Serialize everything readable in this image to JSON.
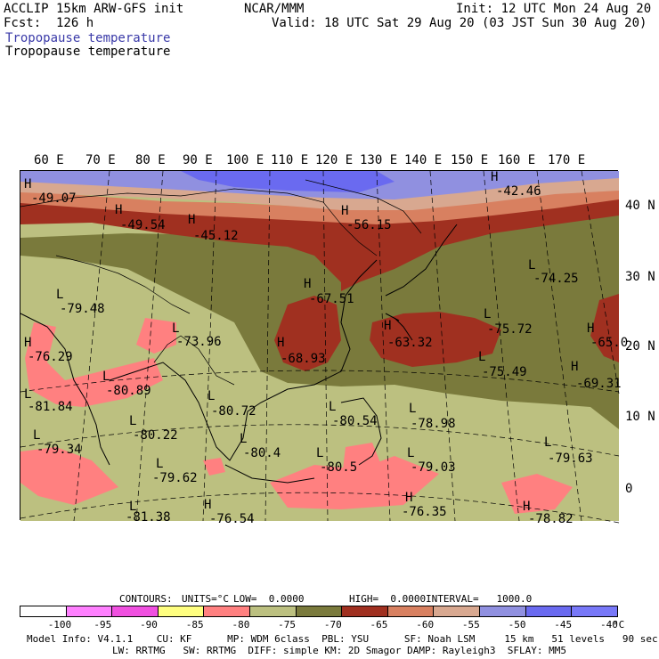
{
  "header": {
    "title": "ACCLIP 15km ARW-GFS init",
    "org": "NCAR/MMM",
    "init": "Init: 12 UTC Mon 24 Aug 20",
    "fcst": "Fcst:  126 h",
    "valid": "Valid: 18 UTC Sat 29 Aug 20 (03 JST Sun 30 Aug 20)",
    "field_colored": "Tropopause temperature",
    "field_contour": "Tropopause temperature"
  },
  "lon_labels": [
    "60 E",
    "70 E",
    "80 E",
    "90 E",
    "100 E",
    "110 E",
    "120 E",
    "130 E",
    "140 E",
    "150 E",
    "160 E",
    "170 E"
  ],
  "lat_labels": [
    "40 N",
    "30 N",
    "20 N",
    "10 N",
    "0"
  ],
  "map_labels": [
    {
      "type": "H",
      "value": "-49.07"
    },
    {
      "type": "H",
      "value": "-49.54"
    },
    {
      "type": "H",
      "value": "-45.12"
    },
    {
      "type": "H",
      "value": "-56.15"
    },
    {
      "type": "H",
      "value": "-42.46"
    },
    {
      "type": "L",
      "value": "-74.25"
    },
    {
      "type": "H",
      "value": "-67.51"
    },
    {
      "type": "L",
      "value": "-79.48"
    },
    {
      "type": "H",
      "value": "-76.29"
    },
    {
      "type": "L",
      "value": "-73.96"
    },
    {
      "type": "H",
      "value": "-68.93"
    },
    {
      "type": "H",
      "value": "-63.32"
    },
    {
      "type": "L",
      "value": "-75.72"
    },
    {
      "type": "H",
      "value": "-65.0"
    },
    {
      "type": "L",
      "value": "-75.49"
    },
    {
      "type": "H",
      "value": "-69.31"
    },
    {
      "type": "L",
      "value": "-80.89"
    },
    {
      "type": "L",
      "value": "-81.84"
    },
    {
      "type": "L",
      "value": "-80.72"
    },
    {
      "type": "L",
      "value": "-80.54"
    },
    {
      "type": "L",
      "value": "-78.98"
    },
    {
      "type": "L",
      "value": "-80.22"
    },
    {
      "type": "L",
      "value": "-79.34"
    },
    {
      "type": "L",
      "value": "-80.4"
    },
    {
      "type": "L",
      "value": "-80.5"
    },
    {
      "type": "L",
      "value": "-79.03"
    },
    {
      "type": "L",
      "value": "-79.63"
    },
    {
      "type": "L",
      "value": "-79.62"
    },
    {
      "type": "L",
      "value": "-81.38"
    },
    {
      "type": "H",
      "value": "-76.35"
    },
    {
      "type": "H",
      "value": "-76.54"
    },
    {
      "type": "H",
      "value": "-78.82"
    }
  ],
  "contour_info": {
    "contours": "CONTOURS:",
    "units": "UNITS=°C",
    "low": "LOW=  0.0000",
    "high": "HIGH=  0.0000",
    "interval": "INTERVAL=   1000.0"
  },
  "legend": {
    "colors": [
      "#ffffff",
      "#ff80ff",
      "#f050e0",
      "#ffff80",
      "#ff8080",
      "#bcc080",
      "#7a7a3c",
      "#a03020",
      "#d88060",
      "#d8a890",
      "#9090e0",
      "#6a6af0",
      "#7878f8"
    ],
    "ticks": [
      "-100",
      "-95",
      "-90",
      "-85",
      "-80",
      "-75",
      "-70",
      "-65",
      "-60",
      "-55",
      "-50",
      "-45",
      "-40"
    ],
    "unit": "°C"
  },
  "colors": {
    "olive_light": "#bcc080",
    "olive_dark": "#7a7a3c",
    "red_dark": "#a03020",
    "orange": "#d88060",
    "pink_light": "#d8a890",
    "lavender": "#9090e0",
    "blue": "#6a6af0",
    "pink": "#ff8080"
  },
  "footer": {
    "line1": "Model Info: V4.1.1    CU: KF      MP: WDM 6class  PBL: YSU      SF: Noah LSM     15 km   51 levels   90 sec",
    "line2": "LW: RRTMG   SW: RRTMG  DIFF: simple KM: 2D Smagor DAMP: Rayleigh3  SFLAY: MM5"
  }
}
